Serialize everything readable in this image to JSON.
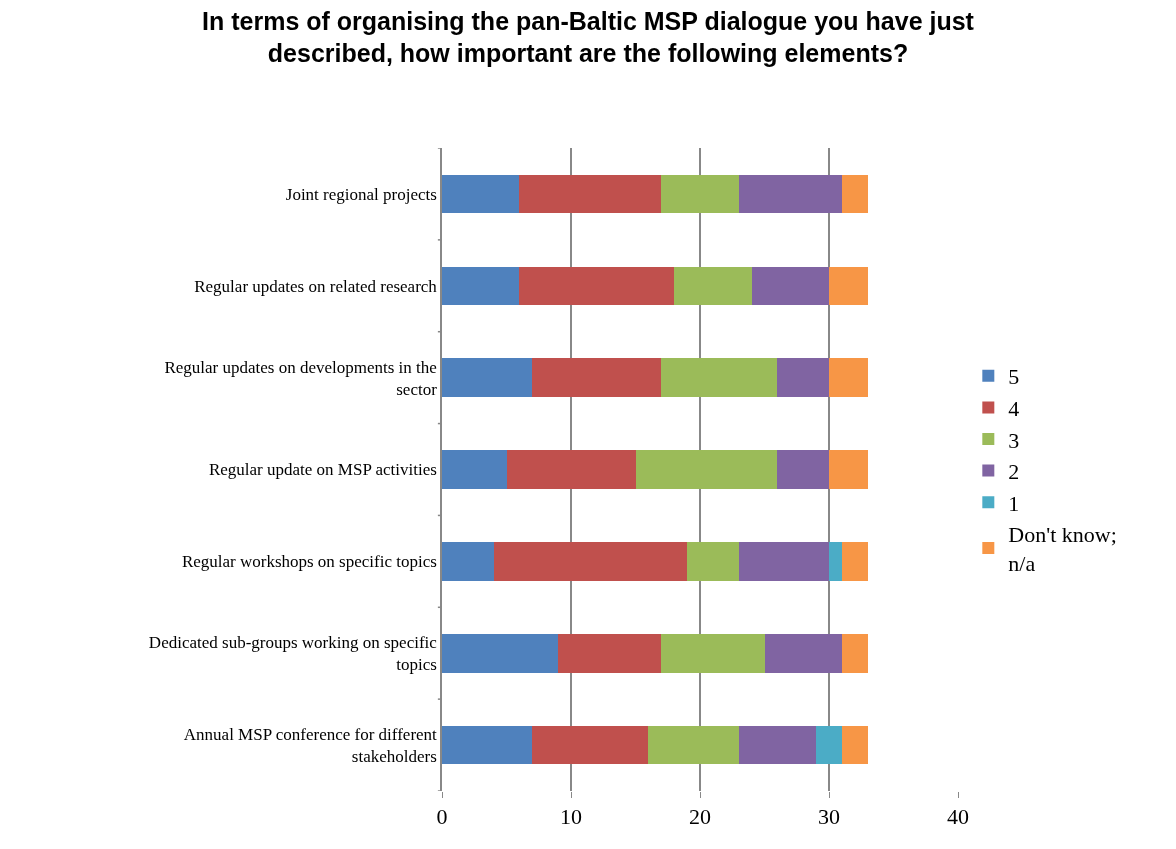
{
  "chart_data": {
    "type": "bar",
    "orientation": "horizontal",
    "stacked": true,
    "title": "In terms of organising the pan-Baltic MSP dialogue you have just described, how important are the following elements?",
    "categories": [
      "Joint regional projects",
      "Regular updates on related research",
      "Regular updates on developments in the sector",
      "Regular update on MSP activities",
      "Regular workshops on specific topics",
      "Dedicated sub-groups working on specific topics",
      "Annual MSP conference for different stakeholders"
    ],
    "series": [
      {
        "name": "5",
        "color": "#4f81bd",
        "values": [
          6,
          6,
          7,
          5,
          4,
          9,
          7
        ]
      },
      {
        "name": "4",
        "color": "#c0504d",
        "values": [
          11,
          12,
          10,
          10,
          15,
          8,
          9
        ]
      },
      {
        "name": "3",
        "color": "#9bbb59",
        "values": [
          6,
          6,
          9,
          11,
          4,
          8,
          7
        ]
      },
      {
        "name": "2",
        "color": "#8064a2",
        "values": [
          8,
          6,
          4,
          4,
          7,
          6,
          6
        ]
      },
      {
        "name": "1",
        "color": "#4bacc6",
        "values": [
          null,
          null,
          null,
          null,
          1,
          null,
          2
        ]
      },
      {
        "name": "Don't know; n/a",
        "color": "#f79646",
        "values": [
          2,
          3,
          3,
          3,
          2,
          2,
          2
        ]
      }
    ],
    "xlim": [
      0,
      40
    ],
    "xticks": [
      0,
      10,
      20,
      30,
      40
    ],
    "grid": "x",
    "legend": "right"
  }
}
